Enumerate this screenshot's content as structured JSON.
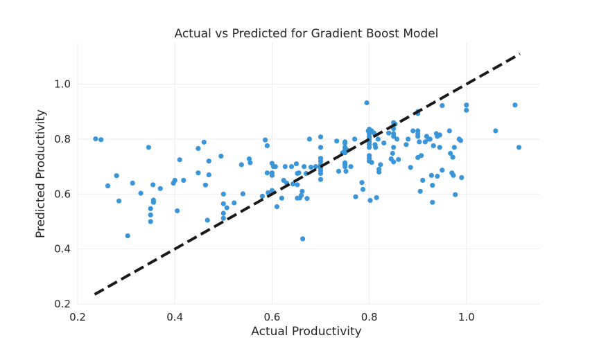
{
  "chart_data": {
    "type": "scatter",
    "title": "Actual vs Predicted for Gradient Boost Model",
    "xlabel": "Actual Productivity",
    "ylabel": "Predicted Productivity",
    "xlim": [
      0.2,
      1.15
    ],
    "ylim": [
      0.2,
      1.15
    ],
    "xticks": [
      0.2,
      0.4,
      0.6,
      0.8,
      1.0
    ],
    "yticks": [
      0.2,
      0.4,
      0.6,
      0.8,
      1.0
    ],
    "xtick_labels": [
      "0.2",
      "0.4",
      "0.6",
      "0.8",
      "1.0"
    ],
    "ytick_labels": [
      "0.2",
      "0.4",
      "0.6",
      "0.8",
      "1.0"
    ],
    "grid": true,
    "point_color": "#3a96d8",
    "reference_line": {
      "from": [
        0.235,
        0.235
      ],
      "to": [
        1.11,
        1.11
      ],
      "style": "dashed",
      "color": "#1a1a1a"
    },
    "points": [
      [
        0.237,
        0.801
      ],
      [
        0.248,
        0.798
      ],
      [
        0.262,
        0.63
      ],
      [
        0.28,
        0.667
      ],
      [
        0.285,
        0.575
      ],
      [
        0.303,
        0.448
      ],
      [
        0.313,
        0.64
      ],
      [
        0.33,
        0.603
      ],
      [
        0.346,
        0.77
      ],
      [
        0.35,
        0.547
      ],
      [
        0.35,
        0.524
      ],
      [
        0.35,
        0.5
      ],
      [
        0.355,
        0.634
      ],
      [
        0.356,
        0.578
      ],
      [
        0.356,
        0.57
      ],
      [
        0.37,
        0.62
      ],
      [
        0.397,
        0.64
      ],
      [
        0.4,
        0.65
      ],
      [
        0.405,
        0.539
      ],
      [
        0.41,
        0.725
      ],
      [
        0.418,
        0.65
      ],
      [
        0.448,
        0.677
      ],
      [
        0.448,
        0.766
      ],
      [
        0.46,
        0.789
      ],
      [
        0.463,
        0.633
      ],
      [
        0.467,
        0.505
      ],
      [
        0.47,
        0.72
      ],
      [
        0.47,
        0.67
      ],
      [
        0.495,
        0.738
      ],
      [
        0.5,
        0.6
      ],
      [
        0.5,
        0.565
      ],
      [
        0.5,
        0.53
      ],
      [
        0.5,
        0.512
      ],
      [
        0.507,
        0.55
      ],
      [
        0.522,
        0.568
      ],
      [
        0.537,
        0.707
      ],
      [
        0.54,
        0.601
      ],
      [
        0.553,
        0.728
      ],
      [
        0.555,
        0.714
      ],
      [
        0.58,
        0.592
      ],
      [
        0.586,
        0.797
      ],
      [
        0.59,
        0.776
      ],
      [
        0.59,
        0.677
      ],
      [
        0.592,
        0.605
      ],
      [
        0.6,
        0.712
      ],
      [
        0.6,
        0.677
      ],
      [
        0.6,
        0.668
      ],
      [
        0.6,
        0.613
      ],
      [
        0.603,
        0.7
      ],
      [
        0.607,
        0.7
      ],
      [
        0.61,
        0.554
      ],
      [
        0.62,
        0.585
      ],
      [
        0.624,
        0.65
      ],
      [
        0.627,
        0.7
      ],
      [
        0.63,
        0.64
      ],
      [
        0.64,
        0.7
      ],
      [
        0.643,
        0.637
      ],
      [
        0.65,
        0.71
      ],
      [
        0.652,
        0.675
      ],
      [
        0.652,
        0.634
      ],
      [
        0.652,
        0.585
      ],
      [
        0.655,
        0.677
      ],
      [
        0.657,
        0.586
      ],
      [
        0.66,
        0.595
      ],
      [
        0.662,
        0.61
      ],
      [
        0.663,
        0.437
      ],
      [
        0.666,
        0.7
      ],
      [
        0.67,
        0.675
      ],
      [
        0.672,
        0.584
      ],
      [
        0.677,
        0.8
      ],
      [
        0.68,
        0.698
      ],
      [
        0.69,
        0.7
      ],
      [
        0.7,
        0.808
      ],
      [
        0.7,
        0.77
      ],
      [
        0.7,
        0.73
      ],
      [
        0.7,
        0.72
      ],
      [
        0.7,
        0.707
      ],
      [
        0.7,
        0.7
      ],
      [
        0.7,
        0.694
      ],
      [
        0.7,
        0.685
      ],
      [
        0.7,
        0.675
      ],
      [
        0.7,
        0.653
      ],
      [
        0.733,
        0.793
      ],
      [
        0.737,
        0.683
      ],
      [
        0.745,
        0.75
      ],
      [
        0.75,
        0.79
      ],
      [
        0.75,
        0.785
      ],
      [
        0.75,
        0.77
      ],
      [
        0.75,
        0.76
      ],
      [
        0.75,
        0.75
      ],
      [
        0.75,
        0.714
      ],
      [
        0.75,
        0.707
      ],
      [
        0.75,
        0.7
      ],
      [
        0.752,
        0.683
      ],
      [
        0.755,
        0.76
      ],
      [
        0.762,
        0.7
      ],
      [
        0.77,
        0.8
      ],
      [
        0.772,
        0.59
      ],
      [
        0.785,
        0.642
      ],
      [
        0.787,
        0.617
      ],
      [
        0.795,
        0.932
      ],
      [
        0.798,
        0.83
      ],
      [
        0.8,
        0.836
      ],
      [
        0.8,
        0.82
      ],
      [
        0.8,
        0.808
      ],
      [
        0.8,
        0.8
      ],
      [
        0.8,
        0.79
      ],
      [
        0.8,
        0.78
      ],
      [
        0.8,
        0.77
      ],
      [
        0.8,
        0.74
      ],
      [
        0.8,
        0.73
      ],
      [
        0.8,
        0.72
      ],
      [
        0.802,
        0.577
      ],
      [
        0.805,
        0.83
      ],
      [
        0.805,
        0.715
      ],
      [
        0.81,
        0.822
      ],
      [
        0.812,
        0.78
      ],
      [
        0.813,
        0.77
      ],
      [
        0.815,
        0.587
      ],
      [
        0.818,
        0.8
      ],
      [
        0.82,
        0.68
      ],
      [
        0.82,
        0.69
      ],
      [
        0.823,
        0.707
      ],
      [
        0.83,
        0.786
      ],
      [
        0.84,
        0.822
      ],
      [
        0.845,
        0.728
      ],
      [
        0.848,
        0.748
      ],
      [
        0.85,
        0.86
      ],
      [
        0.85,
        0.838
      ],
      [
        0.85,
        0.82
      ],
      [
        0.85,
        0.81
      ],
      [
        0.85,
        0.77
      ],
      [
        0.85,
        0.717
      ],
      [
        0.853,
        0.855
      ],
      [
        0.857,
        0.8
      ],
      [
        0.86,
        0.726
      ],
      [
        0.876,
        0.78
      ],
      [
        0.88,
        0.8
      ],
      [
        0.885,
        0.697
      ],
      [
        0.89,
        0.83
      ],
      [
        0.9,
        0.9
      ],
      [
        0.9,
        0.893
      ],
      [
        0.9,
        0.83
      ],
      [
        0.9,
        0.82
      ],
      [
        0.9,
        0.81
      ],
      [
        0.9,
        0.733
      ],
      [
        0.903,
        0.79
      ],
      [
        0.905,
        0.61
      ],
      [
        0.907,
        0.74
      ],
      [
        0.91,
        0.65
      ],
      [
        0.915,
        0.79
      ],
      [
        0.918,
        0.81
      ],
      [
        0.922,
        0.8
      ],
      [
        0.925,
        0.8
      ],
      [
        0.928,
        0.668
      ],
      [
        0.93,
        0.632
      ],
      [
        0.93,
        0.57
      ],
      [
        0.932,
        0.776
      ],
      [
        0.938,
        0.82
      ],
      [
        0.94,
        0.81
      ],
      [
        0.94,
        0.665
      ],
      [
        0.945,
        0.815
      ],
      [
        0.945,
        0.77
      ],
      [
        0.95,
        0.922
      ],
      [
        0.95,
        0.687
      ],
      [
        0.965,
        0.83
      ],
      [
        0.967,
        0.748
      ],
      [
        0.97,
        0.677
      ],
      [
        0.972,
        0.734
      ],
      [
        0.973,
        0.668
      ],
      [
        0.975,
        0.77
      ],
      [
        0.977,
        0.598
      ],
      [
        0.985,
        0.8
      ],
      [
        0.988,
        0.795
      ],
      [
        0.99,
        0.66
      ],
      [
        1.0,
        0.924
      ],
      [
        1.0,
        0.905
      ],
      [
        1.06,
        0.83
      ],
      [
        1.1,
        0.924
      ],
      [
        1.108,
        0.77
      ]
    ]
  }
}
